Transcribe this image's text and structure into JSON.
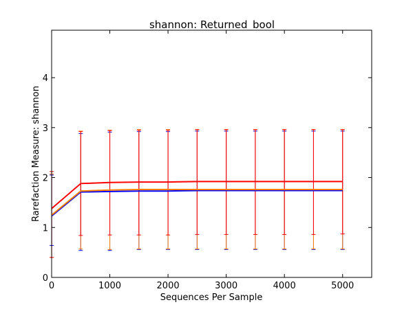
{
  "chart_data": {
    "type": "line",
    "title": "shannon: Returned_bool",
    "xlabel": "Sequences Per Sample",
    "ylabel": "Rarefaction Measure: shannon",
    "xlim": [
      0,
      5500
    ],
    "ylim": [
      0,
      4.95
    ],
    "x_ticks": [
      0,
      1000,
      2000,
      3000,
      4000,
      5000
    ],
    "y_ticks": [
      0,
      1,
      2,
      3,
      4
    ],
    "x_tick_labels": [
      "0",
      "1000",
      "2000",
      "3000",
      "4000",
      "5000"
    ],
    "y_tick_labels": [
      "0",
      "1",
      "2",
      "3",
      "4"
    ],
    "grid": false,
    "legend": "none",
    "x": [
      1,
      500,
      1000,
      1500,
      2000,
      2500,
      3000,
      3500,
      4000,
      4500,
      5000
    ],
    "series": [
      {
        "color": "#0000ff",
        "values": [
          1.23,
          1.71,
          1.72,
          1.73,
          1.73,
          1.74,
          1.74,
          1.74,
          1.74,
          1.74,
          1.74
        ],
        "err_low": [
          0.64,
          0.54,
          0.54,
          0.56,
          0.56,
          0.56,
          0.56,
          0.56,
          0.56,
          0.56,
          0.56
        ],
        "err_high": [
          2.05,
          2.88,
          2.91,
          2.92,
          2.92,
          2.93,
          2.93,
          2.93,
          2.93,
          2.93,
          2.93
        ]
      },
      {
        "color": "#ff8000",
        "values": [
          1.25,
          1.73,
          1.75,
          1.76,
          1.76,
          1.76,
          1.76,
          1.76,
          1.76,
          1.76,
          1.76
        ],
        "err_low": [
          0.4,
          0.57,
          0.56,
          0.57,
          0.57,
          0.57,
          0.57,
          0.57,
          0.57,
          0.57,
          0.57
        ],
        "err_high": [
          2.07,
          2.93,
          2.95,
          2.96,
          2.96,
          2.96,
          2.96,
          2.96,
          2.96,
          2.96,
          2.96
        ]
      },
      {
        "color": "#ff0000",
        "values": [
          1.38,
          1.88,
          1.9,
          1.91,
          1.91,
          1.92,
          1.92,
          1.92,
          1.92,
          1.92,
          1.92
        ],
        "err_low": [
          0.4,
          0.84,
          0.85,
          0.85,
          0.85,
          0.86,
          0.86,
          0.86,
          0.86,
          0.86,
          0.87
        ],
        "err_high": [
          2.12,
          2.92,
          2.94,
          2.95,
          2.95,
          2.96,
          2.96,
          2.96,
          2.96,
          2.96,
          2.96
        ]
      }
    ]
  }
}
